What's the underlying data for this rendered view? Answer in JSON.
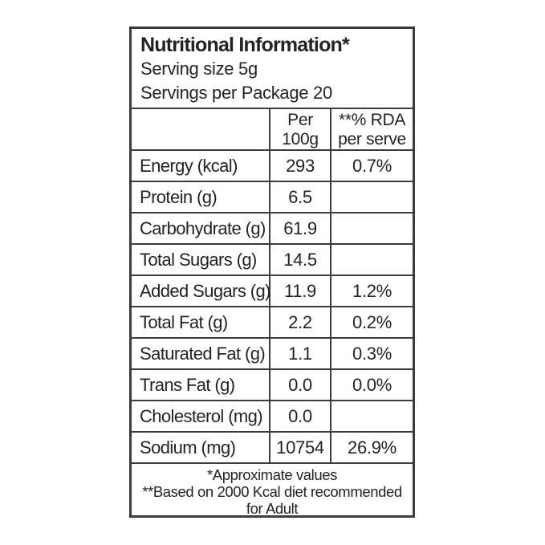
{
  "label": {
    "title": "Nutritional Information*",
    "serving_size": "Serving size 5g",
    "servings_per_package": "Servings per Package 20",
    "columns": {
      "amount_line1": "Per",
      "amount_line2": "100g",
      "rda_line1": "**% RDA",
      "rda_line2": "per serve"
    },
    "rows": [
      {
        "label": "Energy (kcal)",
        "per_100g": "293",
        "rda": "0.7%"
      },
      {
        "label": "Protein (g)",
        "per_100g": "6.5",
        "rda": ""
      },
      {
        "label": "Carbohydrate (g)",
        "per_100g": "61.9",
        "rda": ""
      },
      {
        "label": "Total Sugars (g)",
        "per_100g": "14.5",
        "rda": ""
      },
      {
        "label": "Added Sugars (g)",
        "per_100g": "11.9",
        "rda": "1.2%"
      },
      {
        "label": "Total Fat (g)",
        "per_100g": "2.2",
        "rda": "0.2%"
      },
      {
        "label": "Saturated Fat (g)",
        "per_100g": "1.1",
        "rda": "0.3%"
      },
      {
        "label": "Trans Fat (g)",
        "per_100g": "0.0",
        "rda": "0.0%"
      },
      {
        "label": "Cholesterol (mg)",
        "per_100g": "0.0",
        "rda": ""
      },
      {
        "label": "Sodium (mg)",
        "per_100g": "10754",
        "rda": "26.9%"
      }
    ],
    "footnotes": {
      "approximate": "*Approximate values",
      "rda_basis_line1": "**Based on 2000 Kcal diet recommended",
      "rda_basis_line2": "for Adult"
    },
    "colors": {
      "text": "#252223",
      "border": "#3b3b3b",
      "background": "#ffffff"
    }
  }
}
